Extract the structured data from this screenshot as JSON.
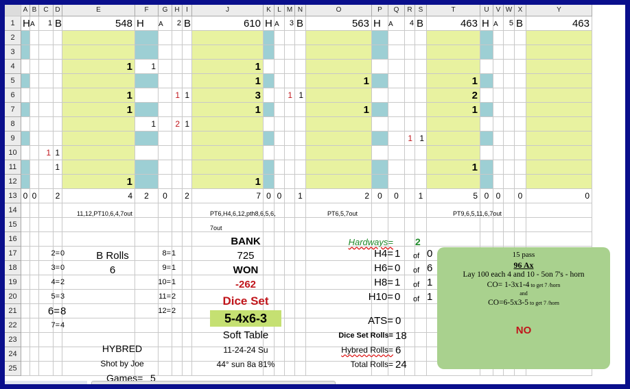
{
  "columns": [
    "A",
    "B",
    "C",
    "D",
    "E",
    "F",
    "G",
    "H",
    "I",
    "J",
    "K",
    "L",
    "M",
    "N",
    "O",
    "P",
    "Q",
    "R",
    "S",
    "T",
    "U",
    "V",
    "W",
    "X",
    "Y"
  ],
  "rows": [
    "1",
    "2",
    "3",
    "4",
    "5",
    "6",
    "7",
    "8",
    "9",
    "10",
    "11",
    "12",
    "13",
    "14",
    "15",
    "16",
    "17",
    "18",
    "19",
    "20",
    "21",
    "22",
    "23",
    "24",
    "25"
  ],
  "header_row": {
    "A": "H",
    "B": "A",
    "C": "1",
    "D": "B",
    "E": "548",
    "F": "H",
    "G": "A",
    "H": "2",
    "I": "B",
    "J": "610",
    "K": "H",
    "L": "A",
    "M": "3",
    "N": "B",
    "O": "563",
    "P": "H",
    "Q": "A",
    "R": "4",
    "S": "B",
    "T": "463",
    "U": "H",
    "V": "A",
    "W": "5",
    "X": "B",
    "Y": "463"
  },
  "grid_values": {
    "E4": "1",
    "F4": "1",
    "J4": "1",
    "J5": "1",
    "O5": "1",
    "T5": "1",
    "E6": "1",
    "H6": "1",
    "I6": "1",
    "J6": "3",
    "M6": "1",
    "N6": "1",
    "T6": "2",
    "E7": "1",
    "J7": "1",
    "O7": "1",
    "T7": "1",
    "F8": "1",
    "H8": "2",
    "I8": "1",
    "R9": "1",
    "S9": "1",
    "C10": "1",
    "D10": "1",
    "D11": "1",
    "T11": "1",
    "E12": "1",
    "J12": "1"
  },
  "totals_row": {
    "A": "0",
    "B": "0",
    "D": "2",
    "E": "4",
    "F": "2",
    "G": "0",
    "I": "2",
    "J": "7",
    "K": "0",
    "L": "0",
    "N": "1",
    "O": "2",
    "P": "0",
    "Q": "0",
    "S": "1",
    "T": "5",
    "U": "0",
    "V": "0",
    "X": "0",
    "Y": "0"
  },
  "sequences": {
    "s1": "11,12,PT10,6,4,7out",
    "s2": "PT6,H4,6,12,pth8,6,5,6,",
    "s2b": "7out",
    "s3": "PT6,5,7out",
    "s4": "PT9,6,5,11,6,7out"
  },
  "stats_left": [
    {
      "label": "2=",
      "value": "0"
    },
    {
      "label": "3=",
      "value": "0"
    },
    {
      "label": "4=",
      "value": "2"
    },
    {
      "label": "5=",
      "value": "3"
    },
    {
      "label": "6=",
      "value": "8"
    },
    {
      "label": "7=",
      "value": "4"
    }
  ],
  "stats_mid": [
    {
      "label": "8=",
      "value": "1"
    },
    {
      "label": "9=",
      "value": "1"
    },
    {
      "label": "10=",
      "value": "1"
    },
    {
      "label": "11=",
      "value": "2"
    },
    {
      "label": "12=",
      "value": "2"
    }
  ],
  "b_rolls": {
    "label": "B Rolls",
    "value": "6"
  },
  "hybred": "HYBRED",
  "shot_by": "Shot by Joe",
  "games": {
    "label": "Games=",
    "value": "5"
  },
  "bank": {
    "label": "BANK",
    "value": "725"
  },
  "won": {
    "label": "WON",
    "value": "-262"
  },
  "dice_set": {
    "label": "Dice Set",
    "value": "5-4x6-3"
  },
  "table_type": "Soft Table",
  "date": "11-24-24 Su",
  "weather": "44° sun 8a 81%",
  "hardways": {
    "label": "Hardways=",
    "value": "2",
    "of_label": "of",
    "items": [
      {
        "label": "H4=",
        "value": "1",
        "of": "0"
      },
      {
        "label": "H6=",
        "value": "0",
        "of": "6"
      },
      {
        "label": "H8=",
        "value": "1",
        "of": "1"
      },
      {
        "label": "H10=",
        "value": "0",
        "of": "1"
      }
    ]
  },
  "ats": {
    "label": "ATS=",
    "value": "0"
  },
  "rolls": {
    "dice_set_label": "Dice Set Rolls=",
    "dice_set_value": "18",
    "hybred_label": "Hybred Rolls=",
    "hybred_value": "6",
    "total_label": "Total Rolls=",
    "total_value": "24"
  },
  "note": {
    "line1": "15 pass",
    "line2": "96 Ax",
    "line3": "Lay  100 each 4 and 10 - 5on 7's - horn",
    "line4a": "CO= 1-3x1-4",
    "line4b": " to get 7 /horn",
    "line5": "and",
    "line6a": "CO=6-5x3-5",
    "line6b": " to get 7 /horn",
    "line7": "NO"
  },
  "colors": {
    "frame": "#0a0f8c",
    "teal": "#9dcfd4",
    "lime": "#e8f2a0",
    "note": "#a9d18e",
    "red": "#c0151b",
    "green": "#1f8a2a"
  }
}
